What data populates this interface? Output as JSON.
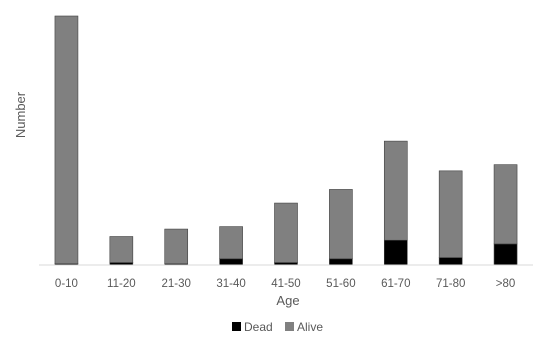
{
  "chart_data": {
    "type": "bar",
    "stacked": true,
    "xlabel": "Age",
    "ylabel": "Number",
    "categories": [
      "0-10",
      "11-20",
      "21-30",
      "31-40",
      "41-50",
      "51-60",
      "61-70",
      "71-80",
      ">80"
    ],
    "series": [
      {
        "name": "Dead",
        "color": "#000000",
        "values": [
          1,
          2,
          1,
          5,
          2,
          5,
          20,
          6,
          17
        ]
      },
      {
        "name": "Alive",
        "color": "#808080",
        "values": [
          200,
          21,
          28,
          26,
          48,
          56,
          80,
          70,
          64
        ]
      }
    ],
    "ylim": [
      0,
      201
    ],
    "legend_position": "bottom",
    "grid": false,
    "y_ticks_shown": false
  }
}
